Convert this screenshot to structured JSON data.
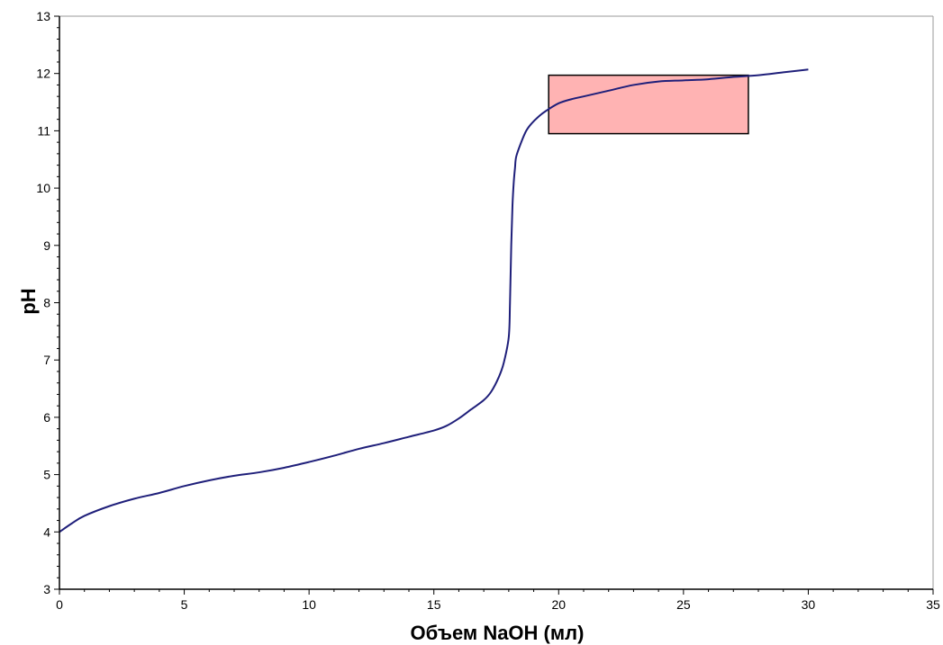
{
  "chart_data": {
    "type": "line",
    "title": "",
    "xlabel": "Объем NaOH (мл)",
    "ylabel": "pH",
    "xlim": [
      0,
      35
    ],
    "ylim": [
      3,
      13
    ],
    "xticks": [
      0,
      5,
      10,
      15,
      20,
      25,
      30,
      35
    ],
    "yticks": [
      3,
      4,
      5,
      6,
      7,
      8,
      9,
      10,
      11,
      12,
      13
    ],
    "grid": false,
    "legend": "none",
    "series": [
      {
        "color": "#1f1f7a",
        "x": [
          0,
          0.5,
          1,
          2,
          3,
          4,
          5,
          6,
          7,
          8,
          9,
          10,
          11,
          12,
          13,
          14,
          15,
          15.5,
          16,
          16.5,
          17,
          17.3,
          17.6,
          17.8,
          18.0,
          18.05,
          18.1,
          18.15,
          18.2,
          18.25,
          18.3,
          18.5,
          18.7,
          18.9,
          19.2,
          19.5,
          20,
          20.5,
          21,
          22,
          23,
          24,
          25,
          26,
          27,
          28,
          29,
          30
        ],
        "y": [
          4.0,
          4.15,
          4.28,
          4.45,
          4.58,
          4.68,
          4.8,
          4.9,
          4.98,
          5.04,
          5.12,
          5.22,
          5.33,
          5.45,
          5.55,
          5.66,
          5.77,
          5.85,
          5.98,
          6.14,
          6.3,
          6.45,
          6.7,
          6.95,
          7.4,
          8.0,
          9.0,
          9.7,
          10.1,
          10.35,
          10.55,
          10.8,
          11.0,
          11.12,
          11.25,
          11.35,
          11.48,
          11.55,
          11.6,
          11.7,
          11.8,
          11.86,
          11.88,
          11.9,
          11.94,
          11.97,
          12.02,
          12.07
        ]
      }
    ],
    "annotations": [
      {
        "type": "rect",
        "x0": 19.6,
        "x1": 27.6,
        "y0": 10.95,
        "y1": 11.97,
        "fill": "#ffb3b3",
        "stroke": "#000000"
      }
    ]
  }
}
